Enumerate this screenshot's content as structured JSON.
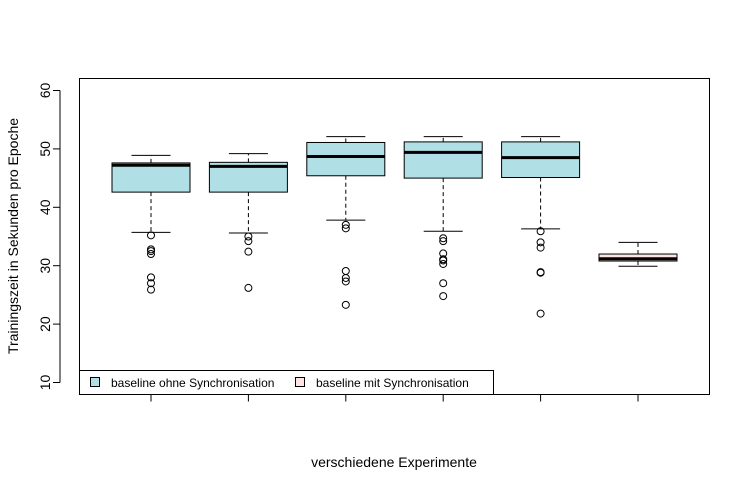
{
  "chart_data": {
    "type": "box",
    "xlabel": "verschiedene Experimente",
    "ylabel": "Trainingszeit in Sekunden pro Epoche",
    "ylim": [
      8,
      62
    ],
    "yticks": [
      10,
      20,
      30,
      40,
      50,
      60
    ],
    "grid": false,
    "legend_position": "bottom-left",
    "legend": [
      {
        "label": "baseline ohne Synchronisation",
        "color": "#b0e0e6"
      },
      {
        "label": "baseline mit Synchronisation",
        "color": "#ffe4e1"
      }
    ],
    "series": [
      {
        "name": "baseline ohne Synchronisation",
        "color": "#b0e0e6",
        "whisker_low": 35.7,
        "q1": 42.6,
        "median": 47.2,
        "q3": 47.6,
        "whisker_high": 48.9,
        "outliers": [
          35.2,
          32.8,
          32.5,
          32.0,
          28.0,
          27.0,
          25.9
        ]
      },
      {
        "name": "baseline ohne Synchronisation",
        "color": "#b0e0e6",
        "whisker_low": 35.6,
        "q1": 42.6,
        "median": 47.0,
        "q3": 47.7,
        "whisker_high": 49.2,
        "outliers": [
          35.0,
          34.2,
          32.4,
          26.2
        ]
      },
      {
        "name": "baseline ohne Synchronisation",
        "color": "#b0e0e6",
        "whisker_low": 37.8,
        "q1": 45.4,
        "median": 48.7,
        "q3": 51.1,
        "whisker_high": 52.1,
        "outliers": [
          37.0,
          36.4,
          29.1,
          27.9,
          27.3,
          23.3
        ]
      },
      {
        "name": "baseline ohne Synchronisation",
        "color": "#b0e0e6",
        "whisker_low": 35.9,
        "q1": 45.0,
        "median": 49.4,
        "q3": 51.2,
        "whisker_high": 52.1,
        "outliers": [
          34.7,
          34.2,
          32.1,
          31.1,
          30.9,
          30.3,
          27.0,
          24.8
        ]
      },
      {
        "name": "baseline ohne Synchronisation",
        "color": "#b0e0e6",
        "whisker_low": 36.3,
        "q1": 45.1,
        "median": 48.5,
        "q3": 51.2,
        "whisker_high": 52.1,
        "outliers": [
          35.9,
          34.0,
          33.1,
          28.9,
          28.8,
          21.8
        ]
      },
      {
        "name": "baseline mit Synchronisation",
        "color": "#ffe4e1",
        "whisker_low": 29.9,
        "q1": 30.8,
        "median": 31.2,
        "q3": 32.0,
        "whisker_high": 34.0,
        "outliers": []
      }
    ]
  }
}
